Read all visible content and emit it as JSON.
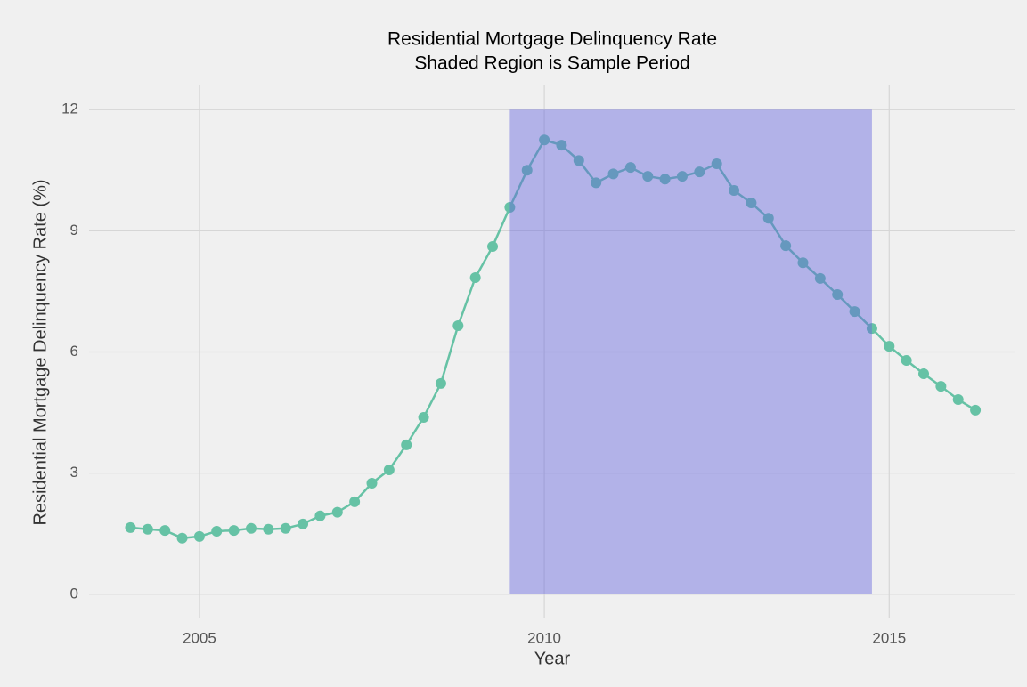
{
  "chart_data": {
    "type": "line",
    "title": "Residential Mortgage Delinquency Rate",
    "subtitle": "Shaded Region is Sample Period",
    "x_label": "Year",
    "y_label": "Residential Mortgage Delinquency Rate (%)",
    "x": [
      2004,
      2004.25,
      2004.5,
      2004.75,
      2005,
      2005.25,
      2005.5,
      2005.75,
      2006,
      2006.25,
      2006.5,
      2006.75,
      2007,
      2007.25,
      2007.5,
      2007.75,
      2008,
      2008.25,
      2008.5,
      2008.75,
      2009,
      2009.25,
      2009.5,
      2009.75,
      2010,
      2010.25,
      2010.5,
      2010.75,
      2011,
      2011.25,
      2011.5,
      2011.75,
      2012,
      2012.25,
      2012.5,
      2012.75,
      2013,
      2013.25,
      2013.5,
      2013.75,
      2014,
      2014.25,
      2014.5,
      2014.75,
      2015,
      2015.25,
      2015.5,
      2015.75,
      2016,
      2016.25
    ],
    "series": [
      {
        "color": "#66c2a5",
        "values": [
          1.65,
          1.61,
          1.58,
          1.39,
          1.43,
          1.56,
          1.58,
          1.63,
          1.61,
          1.63,
          1.74,
          1.94,
          2.03,
          2.29,
          2.75,
          3.08,
          3.7,
          4.38,
          5.22,
          6.65,
          7.84,
          8.61,
          9.58,
          10.5,
          11.25,
          11.12,
          10.74,
          10.19,
          10.41,
          10.57,
          10.35,
          10.28,
          10.35,
          10.46,
          10.66,
          10.0,
          9.69,
          9.31,
          8.63,
          8.21,
          7.82,
          7.42,
          7.0,
          6.58,
          6.14,
          5.79,
          5.46,
          5.15,
          4.82,
          4.56
        ]
      }
    ],
    "shade": {
      "xmin": 2009.5,
      "xmax": 2014.75,
      "ymin": 0,
      "ymax": 12,
      "color": "#6666dd"
    },
    "xlim": [
      2003.4,
      2016.83
    ],
    "xticks": [
      2005,
      2010,
      2015
    ],
    "ylim": [
      -0.6,
      12.6
    ],
    "yticks": [
      0,
      3,
      6,
      9,
      12
    ],
    "grid": true
  }
}
